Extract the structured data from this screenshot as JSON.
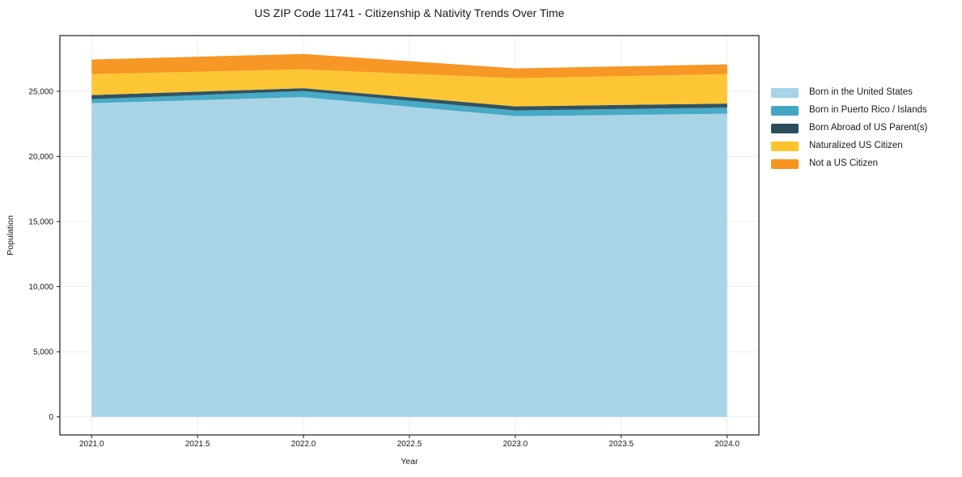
{
  "title": "US ZIP Code 11741 - Citizenship & Nativity Trends Over Time",
  "chart_data": {
    "type": "area",
    "stacked": true,
    "title": "US ZIP Code 11741 - Citizenship & Nativity Trends Over Time",
    "xlabel": "Year",
    "ylabel": "Population",
    "x": [
      2021,
      2022,
      2023,
      2024
    ],
    "series": [
      {
        "name": "Born in the United States",
        "color": "#a6d3e5",
        "values": [
          24090,
          24550,
          23090,
          23280
        ]
      },
      {
        "name": "Born in Puerto Rico / Islands",
        "color": "#41a7c4",
        "values": [
          310,
          470,
          440,
          470
        ]
      },
      {
        "name": "Born Abroad of US Parent(s)",
        "color": "#2a4d5c",
        "values": [
          310,
          220,
          310,
          310
        ]
      },
      {
        "name": "Naturalized US Citizen",
        "color": "#fdc42d",
        "values": [
          1610,
          1450,
          2170,
          2260
        ]
      },
      {
        "name": "Not a US Citizen",
        "color": "#f7941e",
        "values": [
          1120,
          1180,
          750,
          750
        ]
      }
    ],
    "totals": [
      27440,
      27870,
      26760,
      27070
    ],
    "xlim": [
      2020.85,
      2024.15
    ],
    "ylim": [
      -1390,
      29280
    ],
    "x_ticks": {
      "values": [
        2021,
        2021.5,
        2022,
        2022.5,
        2023,
        2023.5,
        2024
      ],
      "labels": [
        "2021.0",
        "2021.5",
        "2022.0",
        "2022.5",
        "2023.0",
        "2023.5",
        "2024.0"
      ]
    },
    "y_ticks": {
      "values": [
        0,
        5000,
        10000,
        15000,
        20000,
        25000
      ],
      "labels": [
        "0",
        "5,000",
        "10,000",
        "15,000",
        "20,000",
        "25,000"
      ]
    },
    "grid": true,
    "grid_color": "#e9edf0",
    "frame_color": "#1a1a1a",
    "legend_position": "right of plot, no frame"
  }
}
